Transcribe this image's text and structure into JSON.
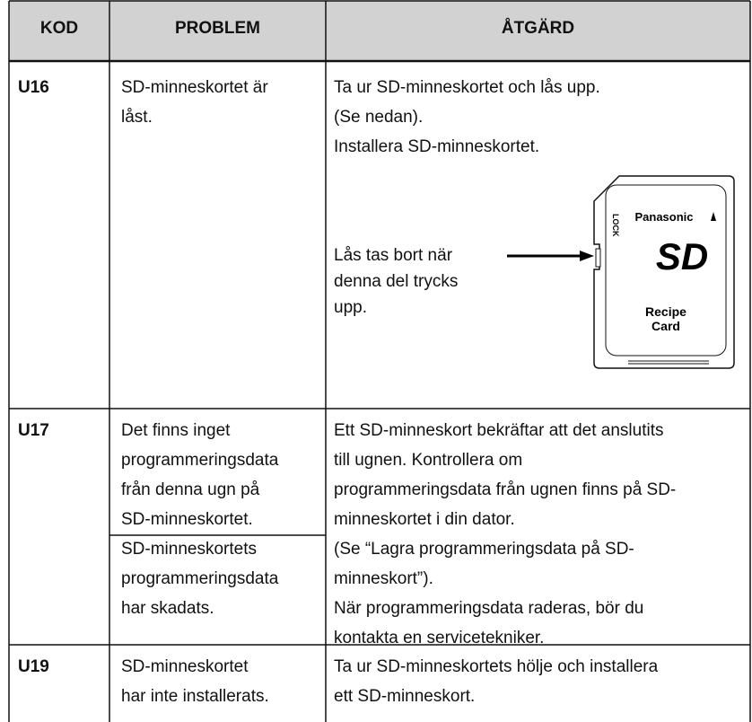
{
  "header": [
    "KOD",
    "PROBLEM",
    "ÅTGÄRD"
  ],
  "rows": [
    {
      "code": "U16",
      "problems": [
        [
          "SD-minneskortet är",
          "låst."
        ]
      ],
      "actions": [
        "Ta ur SD-minneskortet och lås upp.",
        "(Se nedan).",
        "Installera SD-minneskortet."
      ],
      "figure": {
        "callout": [
          "Lås tas bort när",
          "denna del trycks",
          "upp."
        ],
        "brand": "Panasonic",
        "lock": "LOCK",
        "logo": "SD",
        "card_label": [
          "Recipe",
          "Card"
        ]
      }
    },
    {
      "code": "U17",
      "problems": [
        [
          "Det finns inget",
          "programmeringsdata",
          "från denna ugn på",
          "SD-minneskortet."
        ],
        [
          "SD-minneskortets",
          "programmeringsdata",
          "har skadats."
        ]
      ],
      "actions": [
        "Ett SD-minneskort bekräftar att det anslutits",
        "till ugnen. Kontrollera om",
        "programmeringsdata från ugnen finns på SD-",
        "minneskortet i din dator.",
        "(Se “Lagra programmeringsdata på SD-",
        "minneskort”).",
        "När programmeringsdata raderas, bör du",
        "kontakta en servicetekniker."
      ]
    },
    {
      "code": "U19",
      "problems": [
        [
          "SD-minneskortet",
          "har inte installerats."
        ]
      ],
      "actions": [
        "Ta ur SD-minneskortets hölje och installera",
        "ett SD-minneskort."
      ]
    }
  ]
}
